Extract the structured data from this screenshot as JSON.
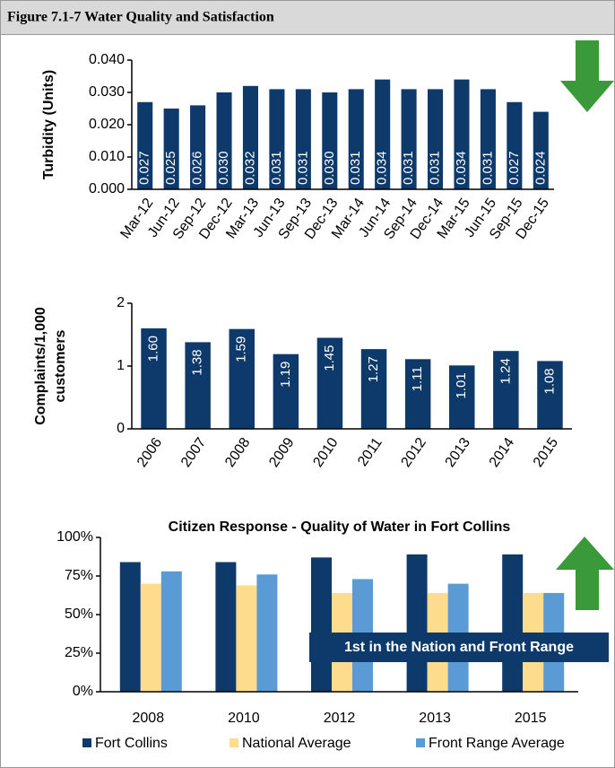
{
  "figure_title": "Figure 7.1-7 Water Quality and Satisfaction",
  "chart_data": [
    {
      "type": "bar",
      "ylabel": [
        "Turbidity (Units)"
      ],
      "categories": [
        "Mar-12",
        "Jun-12",
        "Sep-12",
        "Dec-12",
        "Mar-13",
        "Jun-13",
        "Sep-13",
        "Dec-13",
        "Mar-14",
        "Jun-14",
        "Sep-14",
        "Dec-14",
        "Mar-15",
        "Jun-15",
        "Sep-15",
        "Dec-15"
      ],
      "values": [
        0.027,
        0.025,
        0.026,
        0.03,
        0.032,
        0.031,
        0.031,
        0.03,
        0.031,
        0.034,
        0.031,
        0.031,
        0.034,
        0.031,
        0.027,
        0.024
      ],
      "value_labels": [
        "0.027",
        "0.025",
        "0.026",
        "0.030",
        "0.032",
        "0.031",
        "0.031",
        "0.030",
        "0.031",
        "0.034",
        "0.031",
        "0.031",
        "0.034",
        "0.031",
        "0.027",
        "0.024"
      ],
      "color": "#0d3a6b",
      "ylim": [
        0,
        0.04
      ],
      "yticks": [
        {
          "value": 0,
          "label": "0.000"
        },
        {
          "value": 0.01,
          "label": "0.010"
        },
        {
          "value": 0.02,
          "label": "0.020"
        },
        {
          "value": 0.03,
          "label": "0.030"
        },
        {
          "value": 0.04,
          "label": "0.040"
        }
      ]
    },
    {
      "type": "bar",
      "ylabel": [
        "Complaints/1,000",
        "customers"
      ],
      "categories": [
        "2006",
        "2007",
        "2008",
        "2009",
        "2010",
        "2011",
        "2012",
        "2013",
        "2014",
        "2015"
      ],
      "values": [
        1.6,
        1.38,
        1.59,
        1.19,
        1.45,
        1.27,
        1.11,
        1.01,
        1.24,
        1.08
      ],
      "value_labels": [
        "1.60",
        "1.38",
        "1.59",
        "1.19",
        "1.45",
        "1.27",
        "1.11",
        "1.01",
        "1.24",
        "1.08"
      ],
      "color": "#0d3a6b",
      "ylim": [
        0,
        2
      ],
      "yticks": [
        0,
        1,
        2
      ]
    },
    {
      "type": "grouped_bar",
      "title": "Citizen Response - Quality of Water in Fort Collins",
      "categories": [
        "2008",
        "2010",
        "2012",
        "2013",
        "2015"
      ],
      "series": [
        {
          "name": "Fort Collins",
          "color": "#0d3a6b",
          "values": [
            84,
            84,
            87,
            89,
            89
          ]
        },
        {
          "name": "National Average",
          "color": "#fddc8e",
          "values": [
            70,
            69,
            64,
            64,
            64
          ]
        },
        {
          "name": "Front Range Average",
          "color": "#5b9bd5",
          "values": [
            78,
            76,
            73,
            70,
            64
          ]
        }
      ],
      "ylim": [
        0,
        100
      ],
      "yticks": [
        {
          "value": 0,
          "label": "0%"
        },
        {
          "value": 25,
          "label": "25%"
        },
        {
          "value": 50,
          "label": "50%"
        },
        {
          "value": 75,
          "label": "75%"
        },
        {
          "value": 100,
          "label": "100%"
        }
      ],
      "annotation": "1st in the Nation and Front Range",
      "legend": "bottom"
    }
  ]
}
